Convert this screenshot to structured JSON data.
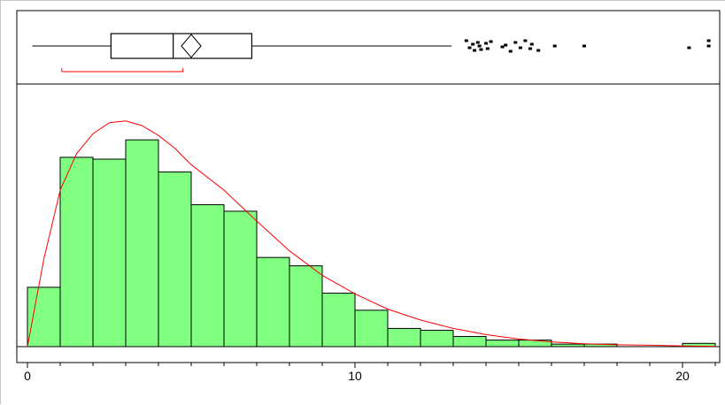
{
  "chart_data": {
    "type": "histogram",
    "x_axis": {
      "min": 0,
      "max": 21,
      "ticks": [
        0,
        10,
        20
      ],
      "tick_labels": [
        "0",
        "10",
        "20"
      ]
    },
    "histogram": {
      "bin_width": 1,
      "bin_start": 0,
      "bars": [
        {
          "x0": 0,
          "x1": 1,
          "height": 0.163
        },
        {
          "x0": 1,
          "x1": 2,
          "height": 0.52
        },
        {
          "x0": 2,
          "x1": 3,
          "height": 0.515
        },
        {
          "x0": 3,
          "x1": 4,
          "height": 0.568
        },
        {
          "x0": 4,
          "x1": 5,
          "height": 0.48
        },
        {
          "x0": 5,
          "x1": 6,
          "height": 0.39
        },
        {
          "x0": 6,
          "x1": 7,
          "height": 0.372
        },
        {
          "x0": 7,
          "x1": 8,
          "height": 0.245
        },
        {
          "x0": 8,
          "x1": 9,
          "height": 0.222
        },
        {
          "x0": 9,
          "x1": 10,
          "height": 0.147
        },
        {
          "x0": 10,
          "x1": 11,
          "height": 0.1
        },
        {
          "x0": 11,
          "x1": 12,
          "height": 0.05
        },
        {
          "x0": 12,
          "x1": 13,
          "height": 0.045
        },
        {
          "x0": 13,
          "x1": 14,
          "height": 0.028
        },
        {
          "x0": 14,
          "x1": 15,
          "height": 0.018
        },
        {
          "x0": 15,
          "x1": 16,
          "height": 0.018
        },
        {
          "x0": 16,
          "x1": 17,
          "height": 0.007
        },
        {
          "x0": 17,
          "x1": 18,
          "height": 0.007
        },
        {
          "x0": 20,
          "x1": 21,
          "height": 0.009
        }
      ],
      "y_max": 0.6
    },
    "density_curve": {
      "x": [
        0,
        0.5,
        1,
        1.5,
        2,
        2.5,
        3,
        3.5,
        4,
        4.5,
        5,
        6,
        7,
        8,
        9,
        10,
        11,
        12,
        13,
        14,
        15,
        16,
        17,
        18,
        19,
        20,
        21
      ],
      "y": [
        0.0,
        0.24,
        0.43,
        0.53,
        0.585,
        0.615,
        0.62,
        0.607,
        0.58,
        0.545,
        0.5,
        0.43,
        0.345,
        0.263,
        0.196,
        0.145,
        0.103,
        0.073,
        0.05,
        0.033,
        0.021,
        0.013,
        0.008,
        0.005,
        0.004,
        0.002,
        0.001
      ]
    },
    "boxplot": {
      "whisker_low": 0.15,
      "q1": 2.55,
      "median": 4.45,
      "mean": 5.0,
      "q3": 6.85,
      "whisker_high": 12.95,
      "mean_ci": [
        4.85,
        5.15
      ],
      "median_ci": [
        1.05,
        4.75
      ],
      "outliers": [
        13.4,
        13.5,
        13.6,
        13.65,
        13.75,
        13.8,
        13.85,
        14.0,
        14.05,
        14.15,
        14.5,
        14.6,
        14.75,
        14.9,
        15.05,
        15.2,
        15.35,
        15.4,
        15.6,
        16.1,
        17.0,
        20.2,
        20.8,
        20.8
      ]
    },
    "colors": {
      "bars": "#80ff80",
      "curve": "#ff0000",
      "box": "#000000",
      "median_ci": "#ff0000"
    }
  }
}
